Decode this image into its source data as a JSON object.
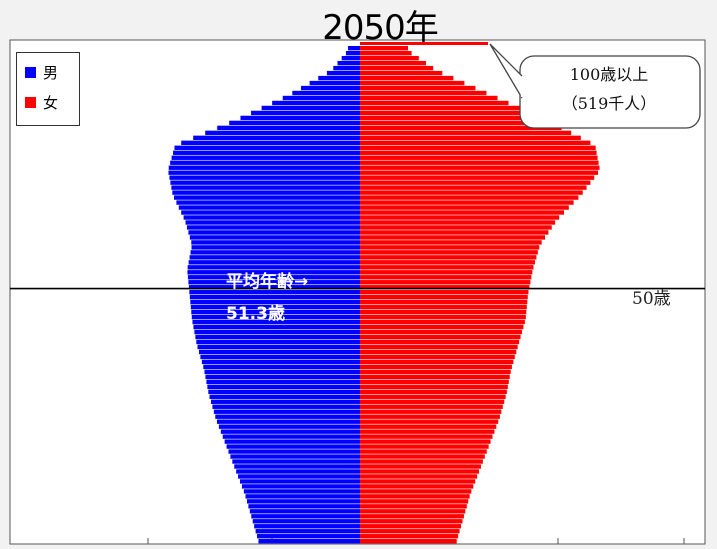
{
  "chart_data": {
    "type": "bar",
    "orientation": "horizontal-population-pyramid",
    "title": "2050年",
    "legend": [
      {
        "label": "男",
        "color": "#0000ff"
      },
      {
        "label": "女",
        "color": "#ff0000"
      }
    ],
    "legend_position": "top-left",
    "y_range": [
      0,
      100
    ],
    "series": [
      {
        "name": "男",
        "color": "#0000ff",
        "age_values": [
          [
            0,
            0.42
          ],
          [
            5,
            0.45
          ],
          [
            10,
            0.48
          ],
          [
            15,
            0.52
          ],
          [
            20,
            0.56
          ],
          [
            25,
            0.6
          ],
          [
            30,
            0.63
          ],
          [
            35,
            0.65
          ],
          [
            40,
            0.68
          ],
          [
            45,
            0.7
          ],
          [
            50,
            0.71
          ],
          [
            55,
            0.72
          ],
          [
            60,
            0.7
          ],
          [
            65,
            0.73
          ],
          [
            70,
            0.78
          ],
          [
            75,
            0.8
          ],
          [
            80,
            0.77
          ],
          [
            85,
            0.52
          ],
          [
            90,
            0.3
          ],
          [
            95,
            0.12
          ],
          [
            99,
            0.05
          ]
        ]
      },
      {
        "name": "女",
        "color": "#ff0000",
        "age_values": [
          [
            0,
            0.4
          ],
          [
            5,
            0.43
          ],
          [
            10,
            0.46
          ],
          [
            15,
            0.5
          ],
          [
            20,
            0.54
          ],
          [
            25,
            0.58
          ],
          [
            30,
            0.61
          ],
          [
            35,
            0.63
          ],
          [
            40,
            0.66
          ],
          [
            45,
            0.69
          ],
          [
            50,
            0.7
          ],
          [
            55,
            0.72
          ],
          [
            60,
            0.75
          ],
          [
            65,
            0.82
          ],
          [
            70,
            0.92
          ],
          [
            75,
            1.0
          ],
          [
            80,
            0.98
          ],
          [
            85,
            0.78
          ],
          [
            90,
            0.55
          ],
          [
            95,
            0.32
          ],
          [
            99,
            0.2
          ]
        ]
      }
    ],
    "annotations": {
      "callout": [
        "100歳以上",
        "（519千人）"
      ],
      "average_age_label": [
        "平均年齢→",
        "51.3歳"
      ],
      "reference_line_label": "50歳"
    }
  }
}
